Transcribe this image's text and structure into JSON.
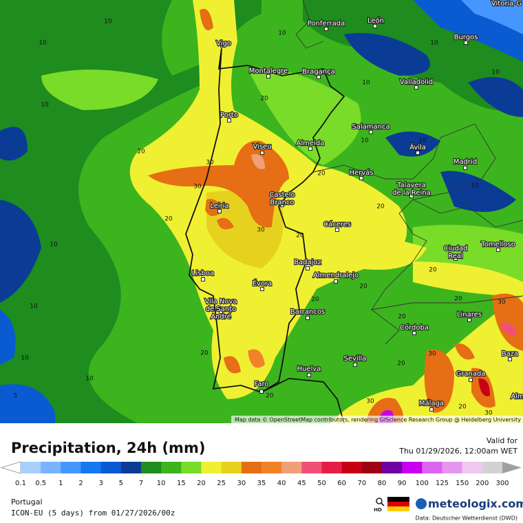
{
  "header": {
    "title": "Precipitation, 24h (mm)",
    "valid_label": "Valid for",
    "valid_time": "Thu 01/29/2026, 12:00am WET"
  },
  "map": {
    "attribution": "Map data © OpenStreetMap contributors, rendering GIScience Research Group @ Heidelberg University",
    "cities": [
      {
        "name": [
          "Vitoria-G"
        ]
      },
      {
        "name": [
          "Ponferrada"
        ]
      },
      {
        "name": [
          "León"
        ]
      },
      {
        "name": [
          "Burgos"
        ]
      },
      {
        "name": [
          "Vigo"
        ]
      },
      {
        "name": [
          "Montalegre"
        ]
      },
      {
        "name": [
          "Bragança"
        ]
      },
      {
        "name": [
          "Valladolid"
        ]
      },
      {
        "name": [
          "Porto"
        ]
      },
      {
        "name": [
          "Salamanca"
        ]
      },
      {
        "name": [
          "Almeida"
        ]
      },
      {
        "name": [
          "Ávila"
        ]
      },
      {
        "name": [
          "Viseu"
        ]
      },
      {
        "name": [
          "Madrid"
        ]
      },
      {
        "name": [
          "Hervás"
        ]
      },
      {
        "name": [
          "Talavera",
          "de la Reina"
        ]
      },
      {
        "name": [
          "Castelo",
          "Branco"
        ]
      },
      {
        "name": [
          "Leiria"
        ]
      },
      {
        "name": [
          "Cáceres"
        ]
      },
      {
        "name": [
          "Ciudad",
          "Real"
        ]
      },
      {
        "name": [
          "Tomelloso"
        ]
      },
      {
        "name": [
          "Badajoz"
        ]
      },
      {
        "name": [
          "Lisboa"
        ]
      },
      {
        "name": [
          "Almendralejo"
        ]
      },
      {
        "name": [
          "Évora"
        ]
      },
      {
        "name": [
          "Vila Nova",
          "de Santo",
          "André"
        ]
      },
      {
        "name": [
          "Barrancos"
        ]
      },
      {
        "name": [
          "Linares"
        ]
      },
      {
        "name": [
          "Córdoba"
        ]
      },
      {
        "name": [
          "Baza"
        ]
      },
      {
        "name": [
          "Sevilla"
        ]
      },
      {
        "name": [
          "Huelva"
        ]
      },
      {
        "name": [
          "Granada"
        ]
      },
      {
        "name": [
          "Faro"
        ]
      },
      {
        "name": [
          "Málaga"
        ]
      },
      {
        "name": [
          "Alm"
        ]
      }
    ],
    "contour_labels": [
      10,
      10,
      10,
      20,
      20,
      30,
      30,
      20,
      20,
      10,
      10,
      10,
      10,
      3,
      20,
      30,
      20,
      20,
      20,
      20,
      20,
      30,
      20,
      20,
      30,
      20,
      30,
      20,
      30,
      10,
      10,
      10,
      10,
      10,
      10,
      10,
      20
    ]
  },
  "legend": {
    "values": [
      0.1,
      0.5,
      1,
      2,
      3,
      5,
      7,
      10,
      15,
      20,
      25,
      30,
      35,
      40,
      45,
      50,
      60,
      70,
      80,
      90,
      100,
      125,
      150,
      200,
      300
    ],
    "colors": [
      "#a8d0ff",
      "#78b4ff",
      "#4696ff",
      "#1478f0",
      "#0a5ad2",
      "#0a3c96",
      "#1e8c1e",
      "#3cb41e",
      "#78dc28",
      "#f0f032",
      "#e6d21e",
      "#e66e14",
      "#f08228",
      "#f0a078",
      "#f05078",
      "#e61e46",
      "#c80014",
      "#a00014",
      "#6e00a0",
      "#c800f0",
      "#dc64f0",
      "#e696f0",
      "#f0c8f0",
      "#d2d2d2"
    ]
  },
  "footer": {
    "region": "Portugal",
    "model_run": "ICON-EU (5 days) from 01/27/2026/00z",
    "hd": "HD",
    "brand": "meteologix.com",
    "source": "Data: Deutscher Wetterdienst (DWD)"
  }
}
